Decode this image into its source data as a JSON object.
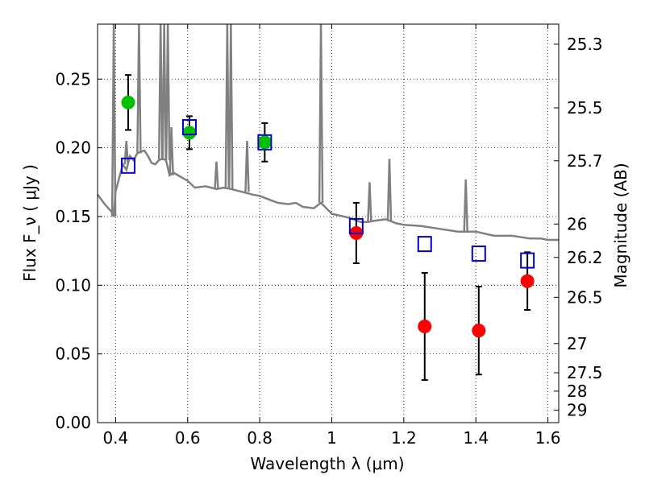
{
  "chart_data": {
    "type": "scatter",
    "title": "",
    "xlabel": "Wavelength  λ (μm)",
    "ylabel": "Flux  F_ν  ( μJy )",
    "y2label": "Magnitude (AB)",
    "xlim": [
      0.35,
      1.63
    ],
    "ylim": [
      0.0,
      0.29
    ],
    "grid": true,
    "x_ticks": [
      "0.4",
      "0.6",
      "0.8",
      "1",
      "1.2",
      "1.4",
      "1.6"
    ],
    "x_tick_values": [
      0.4,
      0.6,
      0.8,
      1.0,
      1.2,
      1.4,
      1.6
    ],
    "y_ticks": [
      "0.00",
      "0.05",
      "0.10",
      "0.15",
      "0.20",
      "0.25"
    ],
    "y_tick_values": [
      0.0,
      0.05,
      0.1,
      0.15,
      0.2,
      0.25
    ],
    "mag_ticks": [
      "25.3",
      "25.5",
      "25.7",
      "26",
      "26.2",
      "26.5",
      "27",
      "27.5",
      "28",
      "29"
    ],
    "mag_tick_values": [
      25.3,
      25.5,
      25.7,
      26,
      26.2,
      26.5,
      27,
      27.5,
      28,
      29
    ],
    "series": [
      {
        "marker": "circle",
        "color": "#00c000",
        "x": [
          0.435,
          0.605,
          0.814
        ],
        "y": [
          0.233,
          0.211,
          0.204
        ],
        "err": [
          0.02,
          0.012,
          0.014
        ]
      },
      {
        "marker": "circle",
        "color": "#ff0000",
        "x": [
          1.068,
          1.258,
          1.408,
          1.543
        ],
        "y": [
          0.138,
          0.07,
          0.067,
          0.103
        ],
        "err": [
          0.022,
          0.039,
          0.032,
          0.021
        ]
      },
      {
        "marker": "open-square",
        "color": "#0000cc",
        "x": [
          0.435,
          0.605,
          0.814,
          1.068,
          1.258,
          1.408,
          1.543
        ],
        "y": [
          0.187,
          0.215,
          0.204,
          0.143,
          0.13,
          0.123,
          0.118
        ]
      },
      {
        "type": "line",
        "color": "#808080",
        "x": [
          0.35,
          0.37,
          0.39,
          0.395,
          0.4,
          0.41,
          0.42,
          0.43,
          0.44,
          0.45,
          0.46,
          0.47,
          0.48,
          0.49,
          0.5,
          0.51,
          0.52,
          0.53,
          0.54,
          0.55,
          0.56,
          0.58,
          0.6,
          0.62,
          0.65,
          0.68,
          0.7,
          0.72,
          0.75,
          0.78,
          0.8,
          0.82,
          0.85,
          0.88,
          0.9,
          0.92,
          0.95,
          0.97,
          1.0,
          1.05,
          1.08,
          1.1,
          1.12,
          1.15,
          1.16,
          1.18,
          1.2,
          1.25,
          1.3,
          1.35,
          1.37,
          1.4,
          1.45,
          1.5,
          1.55,
          1.58,
          1.6,
          1.63
        ],
        "y": [
          0.166,
          0.159,
          0.153,
          0.15,
          0.168,
          0.178,
          0.188,
          0.184,
          0.194,
          0.191,
          0.196,
          0.197,
          0.198,
          0.194,
          0.189,
          0.188,
          0.191,
          0.192,
          0.191,
          0.18,
          0.182,
          0.179,
          0.176,
          0.171,
          0.172,
          0.17,
          0.171,
          0.17,
          0.168,
          0.166,
          0.165,
          0.163,
          0.16,
          0.159,
          0.16,
          0.157,
          0.156,
          0.16,
          0.152,
          0.149,
          0.146,
          0.146,
          0.147,
          0.148,
          0.147,
          0.145,
          0.144,
          0.143,
          0.141,
          0.139,
          0.139,
          0.139,
          0.136,
          0.136,
          0.134,
          0.134,
          0.133,
          0.133
        ]
      }
    ]
  }
}
